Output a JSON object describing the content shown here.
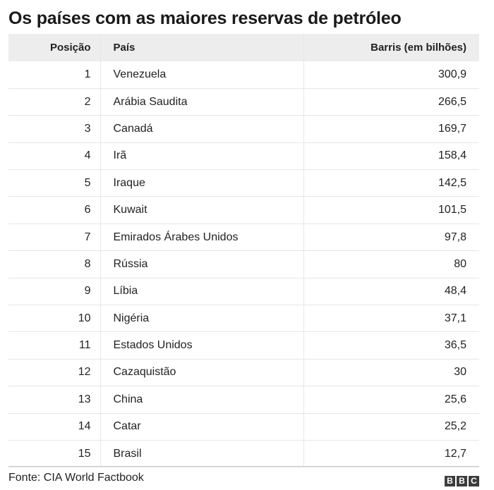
{
  "chart_data": {
    "type": "table",
    "title": "Os países com as maiores reservas de petróleo",
    "columns": [
      "Posição",
      "País",
      "Barris (em bilhões)"
    ],
    "rows": [
      [
        "1",
        "Venezuela",
        "300,9"
      ],
      [
        "2",
        "Arábia Saudita",
        "266,5"
      ],
      [
        "3",
        "Canadá",
        "169,7"
      ],
      [
        "4",
        "Irã",
        "158,4"
      ],
      [
        "5",
        "Iraque",
        "142,5"
      ],
      [
        "6",
        "Kuwait",
        "101,5"
      ],
      [
        "7",
        "Emirados Árabes Unidos",
        "97,8"
      ],
      [
        "8",
        "Rússia",
        "80"
      ],
      [
        "9",
        "Líbia",
        "48,4"
      ],
      [
        "10",
        "Nigéria",
        "37,1"
      ],
      [
        "11",
        "Estados Unidos",
        "36,5"
      ],
      [
        "12",
        "Cazaquistão",
        "30"
      ],
      [
        "13",
        "China",
        "25,6"
      ],
      [
        "14",
        "Catar",
        "25,2"
      ],
      [
        "15",
        "Brasil",
        "12,7"
      ]
    ],
    "source": "Fonte: CIA World Factbook"
  },
  "brand": {
    "letters": [
      "B",
      "B",
      "C"
    ],
    "color": "#3c3c3c"
  },
  "colors": {
    "header_background": "#ededed",
    "grid": "#e6e6e6",
    "text": "#222222"
  }
}
